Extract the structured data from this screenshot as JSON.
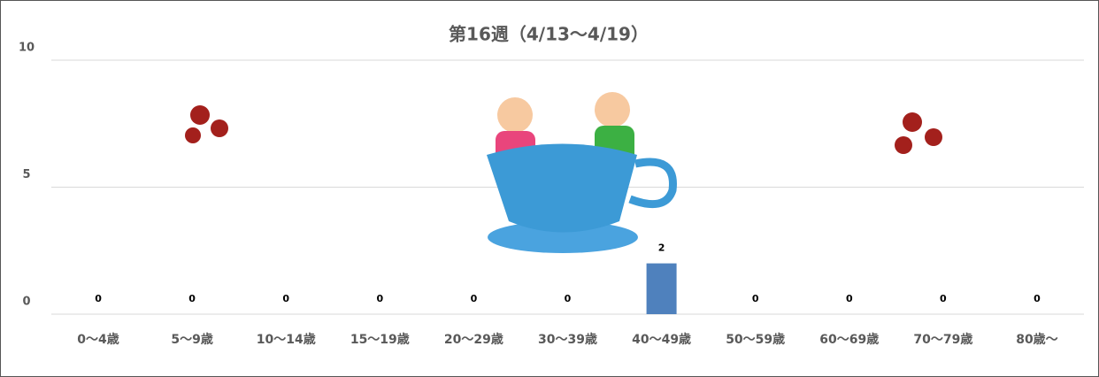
{
  "chart_data": {
    "type": "bar",
    "title": "第16週（4/13〜4/19）",
    "categories": [
      "0〜4歳",
      "5〜9歳",
      "10〜14歳",
      "15〜19歳",
      "20〜29歳",
      "30〜39歳",
      "40〜49歳",
      "50〜59歳",
      "60〜69歳",
      "70〜79歳",
      "80歳〜"
    ],
    "values": [
      0,
      0,
      0,
      0,
      0,
      0,
      2,
      0,
      0,
      0,
      0
    ],
    "color": "#4f81bd",
    "ylim": [
      0,
      10
    ],
    "yticks": [
      0,
      5,
      10
    ],
    "grid": true
  }
}
